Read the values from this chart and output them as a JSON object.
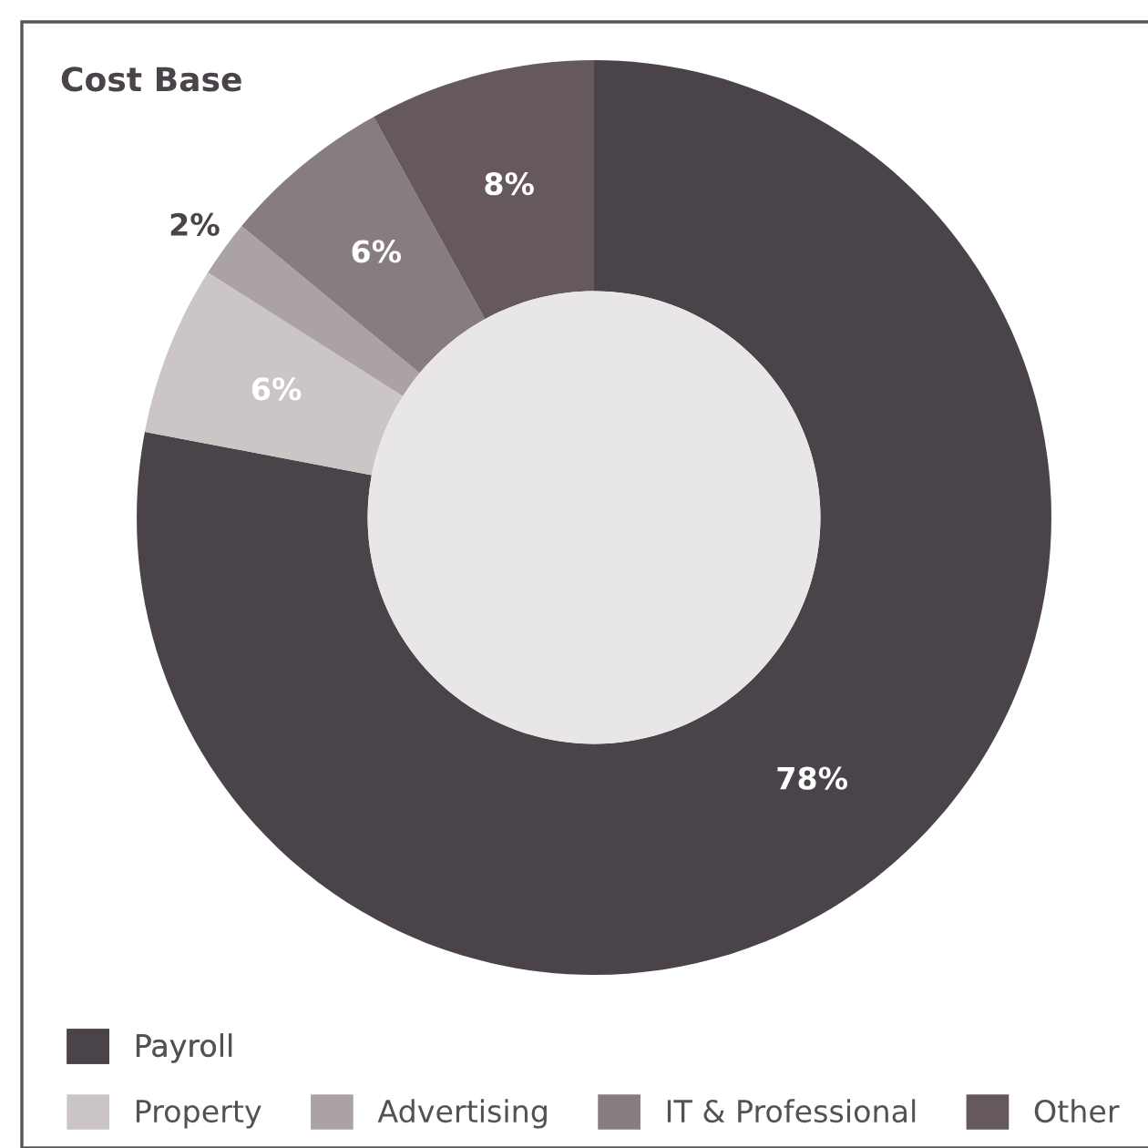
{
  "chart_data": {
    "type": "donut",
    "title": "Cost Base",
    "categories": [
      "Payroll",
      "Property",
      "Advertising",
      "IT & Professional",
      "Other"
    ],
    "values": [
      78,
      6,
      2,
      6,
      8
    ],
    "colors": [
      "#4a444a",
      "#cbc5c5",
      "#aaa2a3",
      "#877c80",
      "#66595d"
    ],
    "value_labels": [
      "78%",
      "6%",
      "2%",
      "6%",
      "8%"
    ],
    "legend": "bottom"
  }
}
